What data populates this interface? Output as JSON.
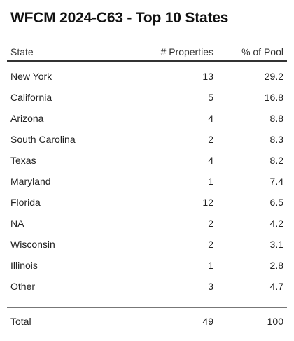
{
  "title": "WFCM 2024-C63 - Top 10 States",
  "columns": {
    "state": "State",
    "properties": "# Properties",
    "pool": "% of Pool"
  },
  "rows": [
    {
      "state": "New York",
      "properties": "13",
      "pool": "29.2"
    },
    {
      "state": "California",
      "properties": "5",
      "pool": "16.8"
    },
    {
      "state": "Arizona",
      "properties": "4",
      "pool": "8.8"
    },
    {
      "state": "South Carolina",
      "properties": "2",
      "pool": "8.3"
    },
    {
      "state": "Texas",
      "properties": "4",
      "pool": "8.2"
    },
    {
      "state": "Maryland",
      "properties": "1",
      "pool": "7.4"
    },
    {
      "state": "Florida",
      "properties": "12",
      "pool": "6.5"
    },
    {
      "state": "NA",
      "properties": "2",
      "pool": "4.2"
    },
    {
      "state": "Wisconsin",
      "properties": "2",
      "pool": "3.1"
    },
    {
      "state": "Illinois",
      "properties": "1",
      "pool": "2.8"
    },
    {
      "state": "Other",
      "properties": "3",
      "pool": "4.7"
    }
  ],
  "total": {
    "state": "Total",
    "properties": "49",
    "pool": "100"
  }
}
